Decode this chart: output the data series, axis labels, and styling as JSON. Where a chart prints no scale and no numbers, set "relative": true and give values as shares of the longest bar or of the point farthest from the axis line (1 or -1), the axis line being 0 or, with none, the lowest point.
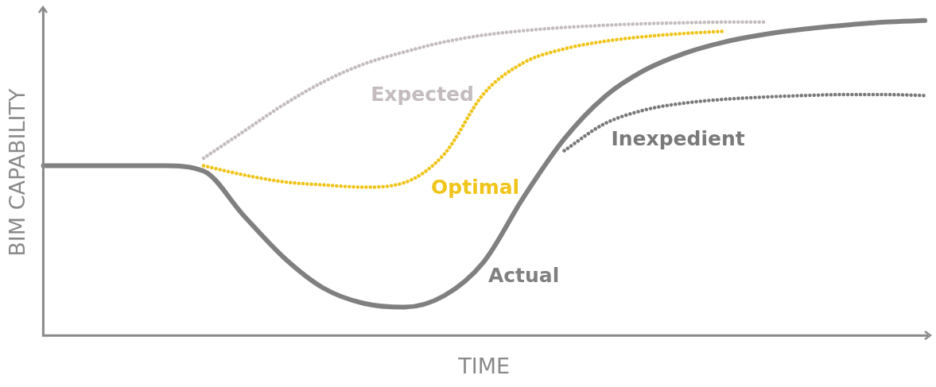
{
  "chart_data": {
    "type": "line",
    "relative": true,
    "xlabel": "TIME",
    "ylabel": "BIM CAPABILITY",
    "legend": false,
    "grid": false,
    "marker": "none",
    "categories": [
      null,
      null,
      null,
      null,
      null,
      null,
      null,
      null,
      null,
      null,
      null,
      null,
      null,
      null,
      null,
      null,
      null,
      null,
      null,
      null,
      null,
      null,
      null
    ],
    "series": [
      {
        "name": "Expected",
        "color": "#c4bcbf",
        "line_style": "dotted",
        "values": [
          null,
          null,
          null,
          null,
          0.563,
          0.648,
          0.733,
          0.806,
          0.862,
          0.9,
          0.932,
          0.954,
          0.968,
          0.978,
          0.985,
          0.99,
          0.993,
          0.995,
          0.995,
          null,
          null,
          null,
          null
        ]
      },
      {
        "name": "Optimal",
        "color": "#f0c419",
        "line_style": "dotted",
        "values": [
          null,
          null,
          null,
          null,
          0.539,
          0.51,
          0.488,
          0.478,
          0.471,
          0.485,
          0.575,
          0.769,
          0.867,
          0.91,
          0.934,
          0.949,
          0.959,
          0.966,
          null,
          null,
          null,
          null,
          null
        ]
      },
      {
        "name": "Inexpedient",
        "color": "#7a7a7a",
        "line_style": "dotted",
        "values": [
          null,
          null,
          null,
          null,
          null,
          null,
          null,
          null,
          null,
          null,
          null,
          null,
          null,
          0.587,
          0.672,
          0.716,
          0.738,
          0.75,
          0.757,
          0.762,
          0.765,
          0.765,
          0.762
        ]
      },
      {
        "name": "Actual",
        "color": "#808080",
        "line_style": "solid",
        "values": [
          0.539,
          0.539,
          0.539,
          0.539,
          0.522,
          0.381,
          0.248,
          0.15,
          0.102,
          0.09,
          0.126,
          0.235,
          0.442,
          0.624,
          0.757,
          0.842,
          0.896,
          0.932,
          0.956,
          0.973,
          0.985,
          0.995,
          1.0
        ]
      }
    ]
  }
}
